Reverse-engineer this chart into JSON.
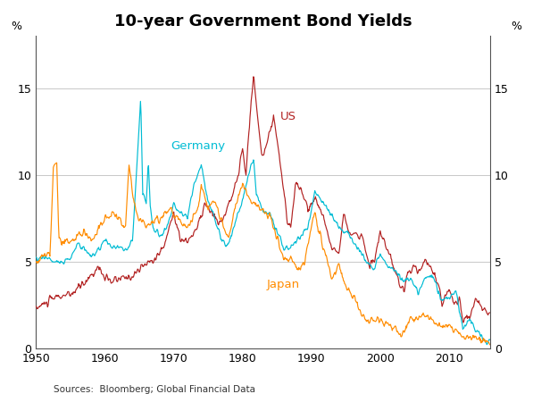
{
  "title": "10-year Government Bond Yields",
  "ylabel_left": "%",
  "ylabel_right": "%",
  "source": "Sources:  Bloomberg; Global Financial Data",
  "ylim": [
    0,
    18
  ],
  "yticks": [
    0,
    5,
    10,
    15
  ],
  "xmin": 1950,
  "xmax": 2016,
  "xticks": [
    1950,
    1960,
    1970,
    1980,
    1990,
    2000,
    2010
  ],
  "colors": {
    "US": "#b22222",
    "Germany": "#00bcd4",
    "Japan": "#ff8c00"
  },
  "label_positions": {
    "US": [
      1985.5,
      13.2
    ],
    "Germany": [
      1969.5,
      11.5
    ],
    "Japan": [
      1983.5,
      3.5
    ]
  },
  "background_color": "#ffffff",
  "grid_color": "#c8c8c8"
}
